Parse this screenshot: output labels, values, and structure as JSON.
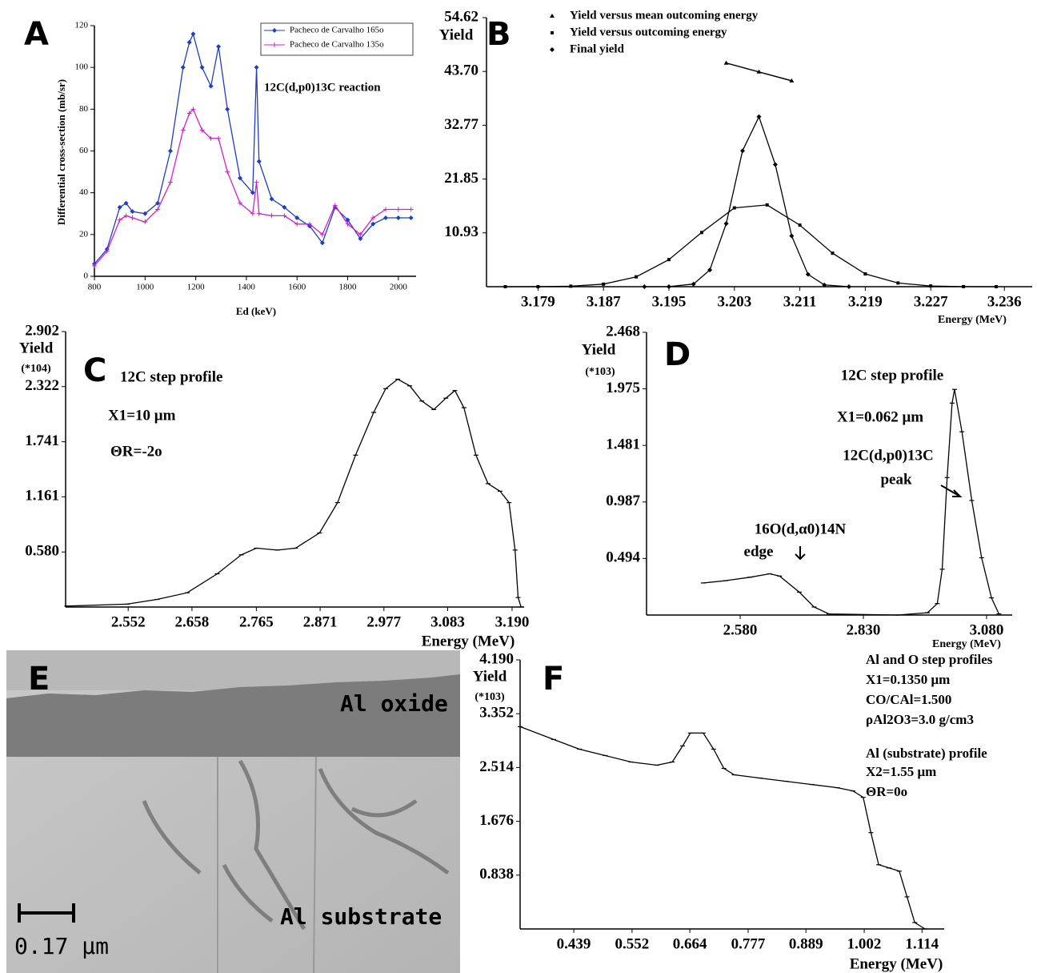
{
  "chart_data": [
    {
      "type": "line",
      "panel_label": "A",
      "xlabel": "Ed (keV)",
      "ylabel": "Differential cross-section (mb/sr)",
      "annotations": [
        "12C(d,p0)13C reaction"
      ],
      "x": [
        800,
        850,
        900,
        925,
        950,
        1000,
        1050,
        1100,
        1150,
        1175,
        1190,
        1225,
        1260,
        1290,
        1325,
        1375,
        1425,
        1440,
        1450,
        1500,
        1550,
        1600,
        1650,
        1700,
        1750,
        1800,
        1850,
        1900,
        1950,
        2000,
        2050
      ],
      "series": [
        {
          "name": "Pacheco de Carvalho 165o",
          "color": "#1f3fbf",
          "marker": "diamond",
          "values": [
            6,
            13,
            33,
            35,
            31,
            30,
            35,
            60,
            100,
            112,
            116,
            100,
            91,
            110,
            80,
            47,
            40,
            100,
            55,
            37,
            33,
            28,
            24,
            16,
            33,
            27,
            18,
            25,
            28,
            28,
            28
          ]
        },
        {
          "name": "Pacheco de Carvalho 135o",
          "color": "#d020c8",
          "marker": "plus",
          "values": [
            5,
            12,
            27,
            29,
            28,
            26,
            32,
            45,
            70,
            78,
            80,
            70,
            66,
            66,
            50,
            35,
            30,
            45,
            30,
            29,
            29,
            25,
            25,
            20,
            34,
            25,
            20,
            28,
            32,
            32,
            32
          ]
        }
      ],
      "xlim": [
        800,
        2070
      ],
      "ylim": [
        0,
        120
      ],
      "xticks": [
        800,
        1000,
        1200,
        1400,
        1600,
        1800,
        2000
      ],
      "yticks": [
        0,
        20,
        40,
        60,
        80,
        100,
        120
      ],
      "legend": "upper right",
      "grid": false
    },
    {
      "type": "line",
      "panel_label": "B",
      "xlabel": "Energy (MeV)",
      "ylabel": "Yield",
      "annotations": [],
      "series": [
        {
          "name": "Yield versus mean outcoming energy",
          "color": "#000000",
          "marker": "triangle",
          "x": [
            3.202,
            3.206,
            3.21
          ],
          "values": [
            45.4,
            43.6,
            41.8
          ]
        },
        {
          "name": "Yield versus outcoming energy",
          "color": "#000000",
          "marker": "square",
          "x": [
            3.175,
            3.179,
            3.183,
            3.187,
            3.191,
            3.195,
            3.199,
            3.203,
            3.207,
            3.211,
            3.215,
            3.219,
            3.223,
            3.227,
            3.231,
            3.235
          ],
          "values": [
            0.0,
            0.01,
            0.1,
            0.52,
            2.0,
            5.5,
            11.0,
            16.0,
            16.6,
            12.5,
            6.8,
            2.6,
            0.75,
            0.15,
            0.02,
            0.0
          ]
        },
        {
          "name": "Final yield",
          "color": "#000000",
          "marker": "diamond",
          "x": [
            3.192,
            3.195,
            3.198,
            3.2,
            3.202,
            3.204,
            3.206,
            3.208,
            3.21,
            3.212,
            3.214,
            3.217
          ],
          "values": [
            0.0,
            0.01,
            0.53,
            3.4,
            12.8,
            27.6,
            34.5,
            24.8,
            10.3,
            2.5,
            0.35,
            0.0
          ]
        }
      ],
      "xlim": [
        3.1727,
        3.2394
      ],
      "ylim": [
        0,
        54.62
      ],
      "xticks": [
        3.179,
        3.187,
        3.195,
        3.203,
        3.211,
        3.219,
        3.227,
        3.236
      ],
      "yticks": [
        10.93,
        21.85,
        32.77,
        {
          "value": 43.7,
          "label": "43.70"
        },
        54.62
      ],
      "legend": "upper left",
      "grid": false
    },
    {
      "type": "line",
      "panel_label": "C",
      "xlabel": "Energy (MeV)",
      "ylabel": "Yield",
      "y_multiplier": "(*104)",
      "annotations": [
        "12C step profile",
        "X1=10 μm",
        "ΘR=-2o"
      ],
      "x": [
        2.45,
        2.55,
        2.6,
        2.65,
        2.7,
        2.74,
        2.765,
        2.8,
        2.83,
        2.87,
        2.9,
        2.93,
        2.96,
        2.98,
        3.0,
        3.02,
        3.04,
        3.06,
        3.08,
        3.095,
        3.11,
        3.13,
        3.15,
        3.17,
        3.185,
        3.195,
        3.2,
        3.205
      ],
      "series": [
        {
          "color": "#000000",
          "marker": "dash",
          "values": [
            0.01,
            0.03,
            0.08,
            0.15,
            0.35,
            0.55,
            0.62,
            0.6,
            0.62,
            0.78,
            1.1,
            1.6,
            2.05,
            2.3,
            2.4,
            2.33,
            2.17,
            2.08,
            2.2,
            2.28,
            2.1,
            1.6,
            1.3,
            1.22,
            1.1,
            0.6,
            0.1,
            0.0
          ]
        }
      ],
      "xlim": [
        2.448,
        3.21
      ],
      "ylim": [
        0,
        2.902
      ],
      "xticks": [
        2.552,
        2.658,
        2.765,
        2.871,
        2.977,
        3.083,
        {
          "value": 3.19,
          "label": "3.190"
        }
      ],
      "yticks": [
        {
          "value": 0.58,
          "label": "0.580"
        },
        1.161,
        1.741,
        2.322,
        2.902
      ],
      "grid": false
    },
    {
      "type": "line",
      "panel_label": "D",
      "xlabel": "Energy (MeV)",
      "ylabel": "Yield",
      "y_multiplier": "(*103)",
      "annotations": [
        "12C step profile",
        "X1=0.062 μm",
        "12C(d,p0)13C",
        "peak",
        "16O(d,α0)14N",
        "edge"
      ],
      "x": [
        2.505,
        2.55,
        2.6,
        2.64,
        2.66,
        2.7,
        2.73,
        2.76,
        2.9,
        2.96,
        2.98,
        2.99,
        3.0,
        3.01,
        3.015,
        3.03,
        3.05,
        3.07,
        3.09,
        3.105
      ],
      "series": [
        {
          "color": "#000000",
          "marker": "dash",
          "values": [
            0.28,
            0.3,
            0.33,
            0.36,
            0.34,
            0.2,
            0.07,
            0.01,
            0.0,
            0.02,
            0.1,
            0.4,
            1.2,
            1.85,
            1.97,
            1.6,
            1.0,
            0.5,
            0.15,
            0.01
          ]
        }
      ],
      "xlim": [
        2.39,
        3.132
      ],
      "ylim": [
        0,
        2.468
      ],
      "xticks": [
        {
          "value": 2.58,
          "label": "2.580"
        },
        {
          "value": 2.83,
          "label": "2.830"
        },
        {
          "value": 3.08,
          "label": "3.080"
        }
      ],
      "yticks": [
        0.494,
        0.987,
        1.481,
        1.975,
        2.468
      ],
      "grid": false
    },
    {
      "type": "line",
      "panel_label": "F",
      "xlabel": "Energy (MeV)",
      "ylabel": "Yield",
      "y_multiplier": "(*103)",
      "annotations": [
        "Al and O step profiles",
        "X1=0.1350 μm",
        "CO/CAl=1.500",
        "ρAl2O3=3.0 g/cm3",
        "Al (substrate) profile",
        "X2=1.55 μm",
        "ΘR=0o"
      ],
      "x": [
        0.335,
        0.4,
        0.45,
        0.5,
        0.55,
        0.6,
        0.63,
        0.65,
        0.665,
        0.69,
        0.71,
        0.73,
        0.75,
        0.8,
        0.85,
        0.9,
        0.95,
        0.98,
        1.0,
        1.015,
        1.03,
        1.05,
        1.07,
        1.085,
        1.1,
        1.12
      ],
      "series": [
        {
          "color": "#000000",
          "marker": "dash",
          "values": [
            3.15,
            2.95,
            2.8,
            2.7,
            2.6,
            2.55,
            2.6,
            2.85,
            3.05,
            3.05,
            2.8,
            2.5,
            2.4,
            2.35,
            2.3,
            2.25,
            2.2,
            2.15,
            2.05,
            1.5,
            1.0,
            0.95,
            0.9,
            0.5,
            0.1,
            0.0
          ]
        }
      ],
      "xlim": [
        0.335,
        1.157
      ],
      "ylim": [
        0,
        4.19
      ],
      "xticks": [
        0.439,
        0.552,
        0.664,
        0.777,
        0.889,
        1.002,
        1.114
      ],
      "yticks": [
        0.838,
        1.676,
        2.514,
        3.352,
        {
          "value": 4.19,
          "label": "4.190"
        }
      ],
      "grid": false
    }
  ],
  "image": {
    "panel_label": "E",
    "oxide_label": "Al oxide",
    "substrate_label": "Al substrate",
    "scale_label": "0.17 μm"
  }
}
